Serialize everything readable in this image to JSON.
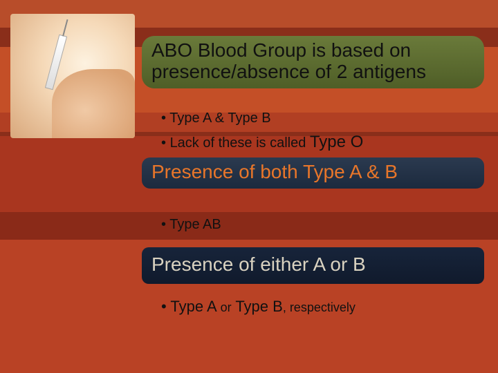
{
  "colors": {
    "background_stripes": [
      "#b84d2a",
      "#8a2e1a",
      "#c44f27",
      "#b13f23",
      "#8a2e1a",
      "#a9361f",
      "#8a2a18",
      "#b94225"
    ],
    "block1_bg": "#5a6a30",
    "block2_bg": "#223449",
    "block3_bg": "#142033",
    "heading2_color": "#e8762a",
    "heading3_color": "#d9d2c0",
    "body_text": "#111111"
  },
  "typography": {
    "heading_fontsize_pt": 21,
    "bullet_fontsize_pt": 15,
    "font_family": "Arial"
  },
  "sections": [
    {
      "heading": "ABO Blood Group is based on presence/absence of 2 antigens",
      "bullets": [
        {
          "text": "Type A & Type B"
        },
        {
          "prefix": "Lack of these is called ",
          "emph": "Type O"
        }
      ]
    },
    {
      "heading": "Presence of both Type A & B",
      "bullets": [
        {
          "text": "Type AB"
        }
      ]
    },
    {
      "heading": "Presence of either A or B",
      "bullets": [
        {
          "prefix": "Type A ",
          "mid": "or",
          "mid2": " Type B",
          "suffix": ", respectively"
        }
      ]
    }
  ]
}
